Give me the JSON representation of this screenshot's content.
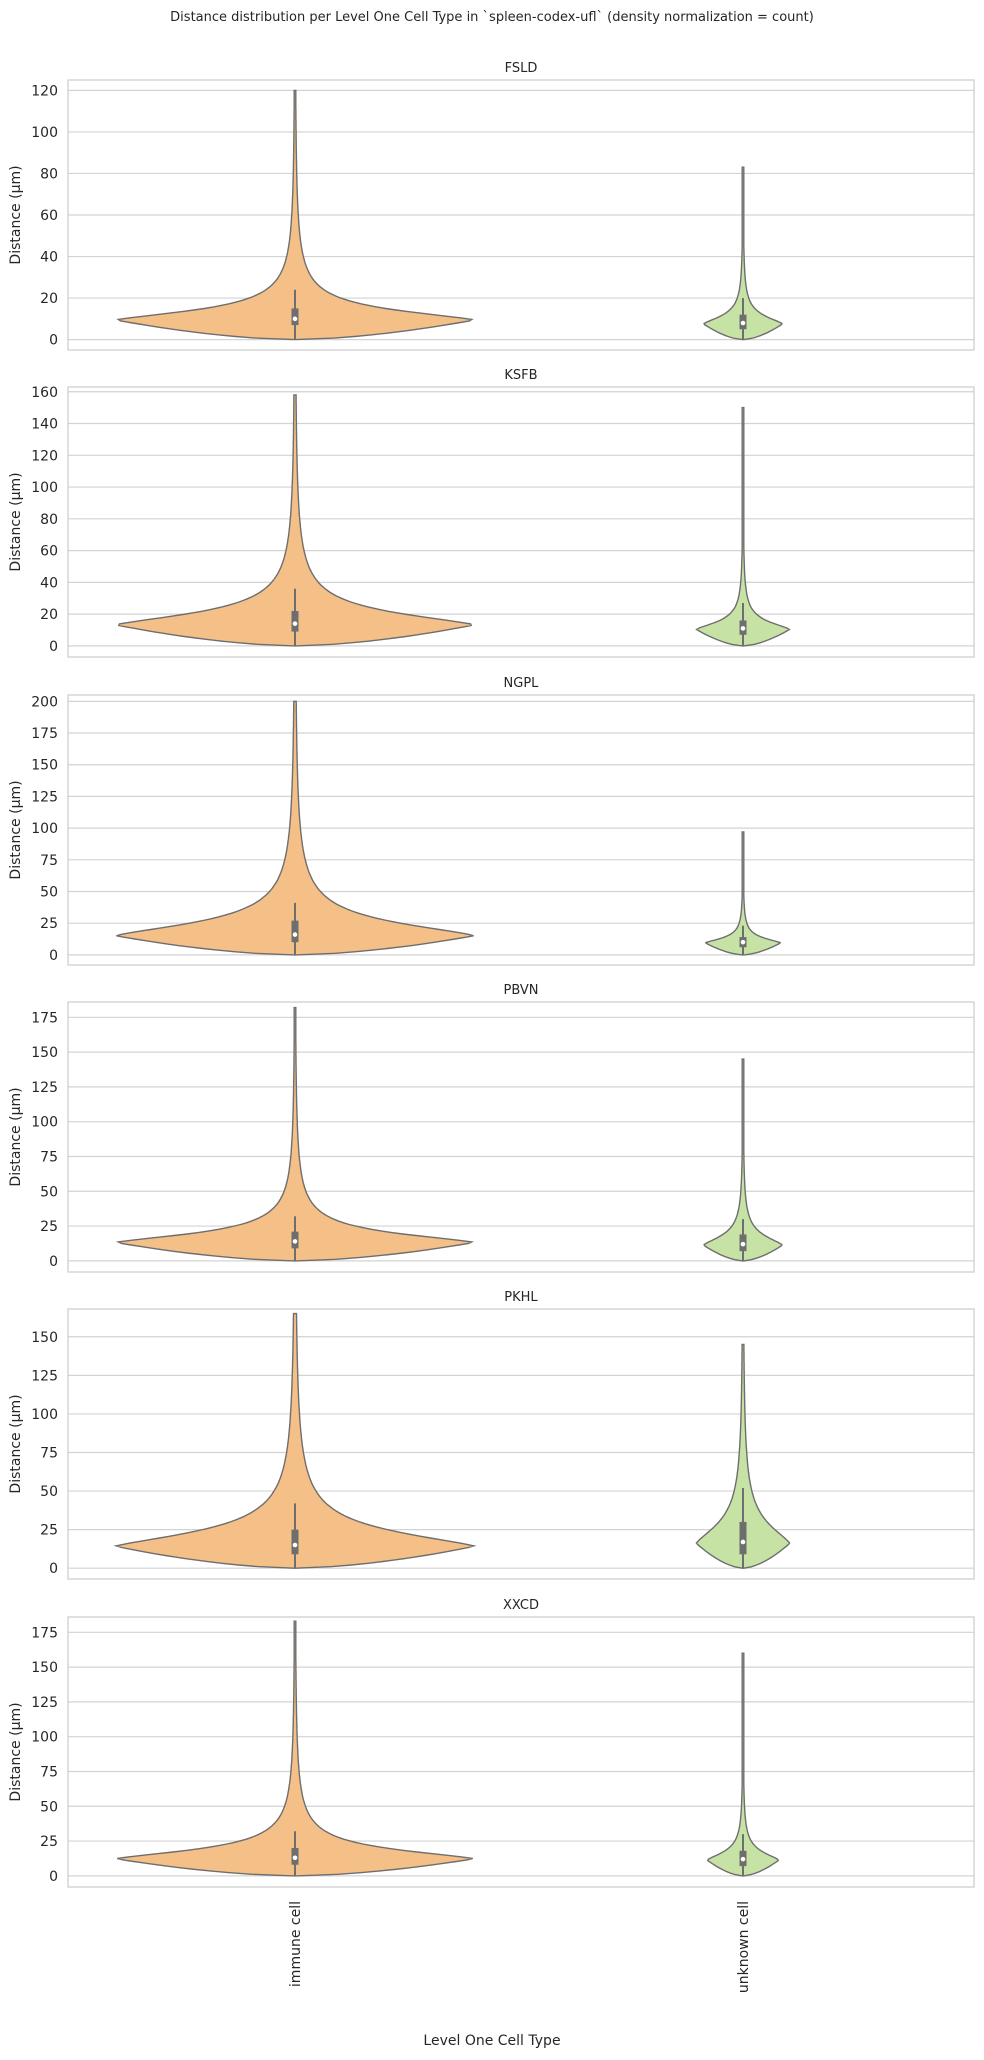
{
  "chart_data": {
    "type": "violin",
    "title": "Distance distribution per Level One Cell Type in `spleen-codex-ufl` (density normalization = count)",
    "xlabel": "Level One Cell Type",
    "ylabel": "Distance (µm)",
    "categories": [
      "immune cell",
      "unknown cell"
    ],
    "colors": {
      "immune cell": "#f4c087",
      "unknown cell": "#c6e2a5",
      "outline": "#6e6e6e",
      "grid": "#d3d3d3"
    },
    "grid": true,
    "panels": [
      {
        "title": "FSLD",
        "ylim": [
          -5,
          125
        ],
        "yticks": [
          0,
          20,
          40,
          60,
          80,
          100,
          120
        ],
        "violins": [
          {
            "category": "immune cell",
            "min": 0,
            "max": 120,
            "q1": 7,
            "median": 10,
            "q3": 15,
            "whisker_high": 24,
            "density_scale": 1.0
          },
          {
            "category": "unknown cell",
            "min": 0,
            "max": 83,
            "q1": 5,
            "median": 8,
            "q3": 12,
            "whisker_high": 20,
            "density_scale": 0.22
          }
        ]
      },
      {
        "title": "KSFB",
        "ylim": [
          -7,
          163
        ],
        "yticks": [
          0,
          20,
          40,
          60,
          80,
          100,
          120,
          140,
          160
        ],
        "violins": [
          {
            "category": "immune cell",
            "min": 0,
            "max": 158,
            "q1": 9,
            "median": 14,
            "q3": 22,
            "whisker_high": 36,
            "density_scale": 1.0
          },
          {
            "category": "unknown cell",
            "min": 0,
            "max": 150,
            "q1": 7,
            "median": 11,
            "q3": 16,
            "whisker_high": 27,
            "density_scale": 0.26
          }
        ]
      },
      {
        "title": "NGPL",
        "ylim": [
          -8,
          205
        ],
        "yticks": [
          0,
          25,
          50,
          75,
          100,
          125,
          150,
          175,
          200
        ],
        "violins": [
          {
            "category": "immune cell",
            "min": 0,
            "max": 200,
            "q1": 10,
            "median": 16,
            "q3": 27,
            "whisker_high": 41,
            "density_scale": 1.0
          },
          {
            "category": "unknown cell",
            "min": 0,
            "max": 97,
            "q1": 6,
            "median": 10,
            "q3": 14,
            "whisker_high": 23,
            "density_scale": 0.21
          }
        ]
      },
      {
        "title": "PBVN",
        "ylim": [
          -8,
          186
        ],
        "yticks": [
          0,
          25,
          50,
          75,
          100,
          125,
          150,
          175
        ],
        "violins": [
          {
            "category": "immune cell",
            "min": 0,
            "max": 182,
            "q1": 9,
            "median": 14,
            "q3": 21,
            "whisker_high": 32,
            "density_scale": 1.0
          },
          {
            "category": "unknown cell",
            "min": 0,
            "max": 145,
            "q1": 7,
            "median": 12,
            "q3": 19,
            "whisker_high": 30,
            "density_scale": 0.22
          }
        ]
      },
      {
        "title": "PKHL",
        "ylim": [
          -7,
          168
        ],
        "yticks": [
          0,
          25,
          50,
          75,
          100,
          125,
          150
        ],
        "violins": [
          {
            "category": "immune cell",
            "min": 0,
            "max": 165,
            "q1": 9,
            "median": 15,
            "q3": 25,
            "whisker_high": 42,
            "density_scale": 1.0
          },
          {
            "category": "unknown cell",
            "min": 0,
            "max": 145,
            "q1": 9,
            "median": 17,
            "q3": 30,
            "whisker_high": 52,
            "density_scale": 0.26
          }
        ]
      },
      {
        "title": "XXCD",
        "ylim": [
          -8,
          186
        ],
        "yticks": [
          0,
          25,
          50,
          75,
          100,
          125,
          150,
          175
        ],
        "violins": [
          {
            "category": "immune cell",
            "min": 0,
            "max": 183,
            "q1": 8,
            "median": 13,
            "q3": 20,
            "whisker_high": 32,
            "density_scale": 1.0
          },
          {
            "category": "unknown cell",
            "min": 0,
            "max": 160,
            "q1": 7,
            "median": 12,
            "q3": 18,
            "whisker_high": 30,
            "density_scale": 0.2
          }
        ]
      }
    ]
  }
}
